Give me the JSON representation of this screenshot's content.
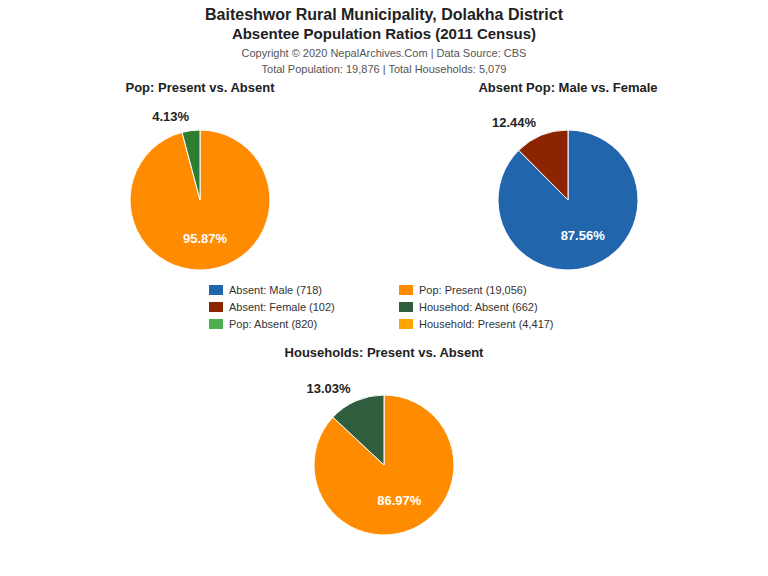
{
  "title": "Baiteshwor Rural Municipality, Dolakha District",
  "subtitle": "Absentee Population Ratios (2011 Census)",
  "annotations": [
    "Copyright © 2020 NepalArchives.Com | Data Source: CBS",
    "Total Population: 19,876 | Total Households: 5,079"
  ],
  "series": [
    {
      "name": "Absent: Male (718)",
      "color": "#2166AC"
    },
    {
      "name": "Absent: Female (102)",
      "color": "#8B2500"
    },
    {
      "name": "Pop: Absent (820)",
      "color": "#4CAF50"
    },
    {
      "name": "Pop: Present (19,056)",
      "color": "#FF8C00"
    },
    {
      "name": "Househod: Absent (662)",
      "color": "#2E5E3E"
    },
    {
      "name": "Household: Present (4,417)",
      "color": "#FFA500"
    }
  ],
  "chart_data": [
    {
      "type": "pie",
      "title": "Pop: Present vs. Absent",
      "values": [
        95.87,
        4.13
      ],
      "value_labels": [
        "95.87%",
        "4.13%"
      ],
      "colors": [
        "#FF8C00",
        "#2E7D32"
      ],
      "data_labels": true
    },
    {
      "type": "pie",
      "title": "Absent Pop: Male vs. Female",
      "values": [
        87.56,
        12.44
      ],
      "value_labels": [
        "87.56%",
        "12.44%"
      ],
      "colors": [
        "#2166AC",
        "#8B2500"
      ],
      "data_labels": true
    },
    {
      "type": "pie",
      "title": "Households: Present vs. Absent",
      "values": [
        86.97,
        13.03
      ],
      "value_labels": [
        "86.97%",
        "13.03%"
      ],
      "colors": [
        "#FF8C00",
        "#2E5E3E"
      ],
      "data_labels": true
    }
  ]
}
